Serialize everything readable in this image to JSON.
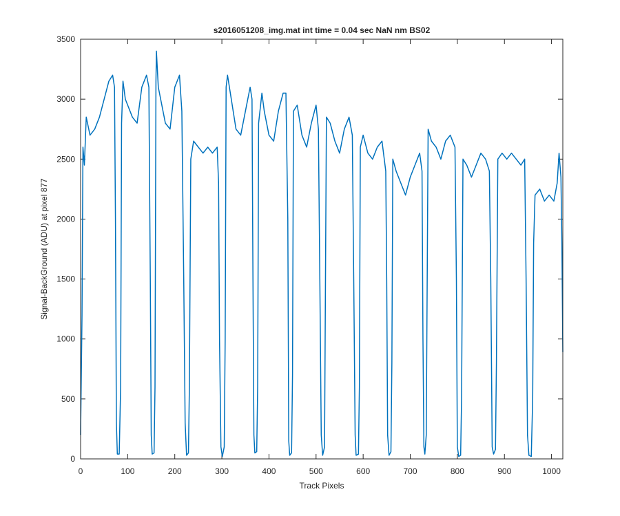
{
  "chart_data": {
    "type": "line",
    "title": "s2016051208_img.mat int time = 0.04 sec  NaN nm BS02",
    "x_label": "Track Pixels",
    "y_label": "Signal-BackGround (ADU) at pixel 877",
    "xlim": [
      0,
      1024
    ],
    "ylim": [
      0,
      3500
    ],
    "xticks": [
      0,
      100,
      200,
      300,
      400,
      500,
      600,
      700,
      800,
      900,
      1000
    ],
    "yticks": [
      0,
      500,
      1000,
      1500,
      2000,
      2500,
      3000,
      3500
    ],
    "grid": false,
    "series": [
      {
        "color": "#0072bd",
        "x": [
          0,
          3,
          5,
          8,
          12,
          20,
          30,
          40,
          50,
          60,
          68,
          72,
          74,
          76,
          78,
          82,
          85,
          87,
          90,
          95,
          100,
          110,
          120,
          130,
          140,
          145,
          148,
          150,
          152,
          156,
          158,
          160,
          161,
          165,
          170,
          180,
          190,
          200,
          210,
          215,
          219,
          222,
          225,
          229,
          231,
          234,
          240,
          250,
          260,
          270,
          280,
          290,
          293,
          295,
          298,
          301,
          305,
          307,
          309,
          312,
          320,
          330,
          340,
          350,
          360,
          364,
          366,
          368,
          370,
          374,
          376,
          378,
          385,
          390,
          400,
          410,
          420,
          430,
          436,
          440,
          442,
          444,
          448,
          450,
          452,
          460,
          470,
          480,
          490,
          500,
          505,
          508,
          511,
          514,
          518,
          520,
          522,
          530,
          540,
          550,
          560,
          570,
          577,
          580,
          583,
          585,
          590,
          592,
          594,
          600,
          610,
          620,
          630,
          640,
          648,
          650,
          652,
          655,
          659,
          661,
          663,
          670,
          680,
          690,
          700,
          710,
          720,
          725,
          727,
          729,
          731,
          734,
          736,
          738,
          745,
          755,
          765,
          775,
          785,
          795,
          798,
          800,
          803,
          807,
          809,
          812,
          820,
          830,
          840,
          850,
          860,
          868,
          871,
          874,
          877,
          881,
          883,
          886,
          895,
          905,
          915,
          925,
          935,
          943,
          946,
          949,
          952,
          957,
          960,
          962,
          965,
          975,
          985,
          995,
          1005,
          1012,
          1016,
          1020,
          1022,
          1024
        ],
        "values": [
          200,
          1200,
          2600,
          2450,
          2850,
          2700,
          2750,
          2850,
          3000,
          3150,
          3200,
          3100,
          2000,
          300,
          40,
          40,
          600,
          2800,
          3150,
          3000,
          2950,
          2850,
          2800,
          3100,
          3200,
          3100,
          1500,
          200,
          40,
          50,
          600,
          3150,
          3400,
          3100,
          3000,
          2800,
          2750,
          3100,
          3200,
          2900,
          1500,
          300,
          30,
          50,
          600,
          2500,
          2650,
          2600,
          2550,
          2600,
          2550,
          2600,
          2300,
          1000,
          100,
          20,
          100,
          1000,
          3100,
          3200,
          3000,
          2750,
          2700,
          2900,
          3100,
          3000,
          1500,
          200,
          50,
          60,
          600,
          2800,
          3050,
          2900,
          2700,
          2650,
          2900,
          3050,
          3050,
          2000,
          150,
          30,
          50,
          700,
          2900,
          2950,
          2700,
          2600,
          2800,
          2950,
          2750,
          1500,
          200,
          30,
          100,
          1500,
          2850,
          2800,
          2650,
          2550,
          2750,
          2850,
          2700,
          1500,
          200,
          30,
          40,
          600,
          2600,
          2700,
          2550,
          2500,
          2600,
          2650,
          2400,
          1500,
          200,
          30,
          60,
          800,
          2500,
          2400,
          2300,
          2200,
          2350,
          2450,
          2550,
          2400,
          1000,
          100,
          40,
          200,
          1500,
          2750,
          2650,
          2600,
          2500,
          2650,
          2700,
          2600,
          1500,
          100,
          20,
          30,
          500,
          2500,
          2450,
          2350,
          2450,
          2550,
          2500,
          2400,
          1500,
          100,
          40,
          80,
          800,
          2500,
          2550,
          2500,
          2550,
          2500,
          2450,
          2500,
          1500,
          200,
          30,
          20,
          500,
          1800,
          2200,
          2250,
          2150,
          2200,
          2150,
          2300,
          2550,
          2350,
          1800,
          890
        ]
      }
    ]
  }
}
